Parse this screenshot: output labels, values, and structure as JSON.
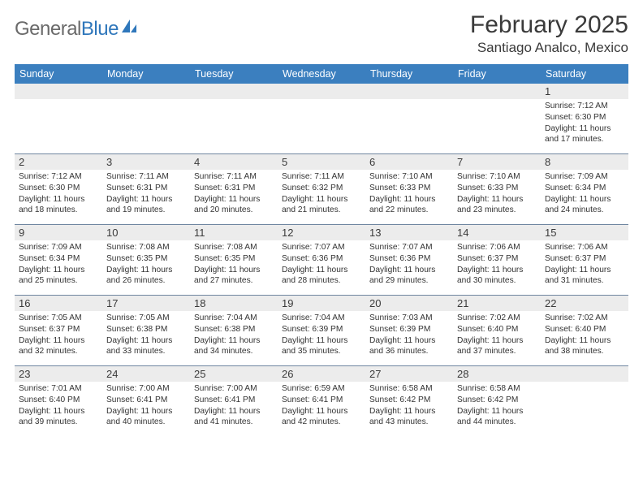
{
  "logo": {
    "text_gray": "General",
    "text_blue": "Blue"
  },
  "title": "February 2025",
  "location": "Santiago Analco, Mexico",
  "colors": {
    "header_bg": "#3b7fbf",
    "header_fg": "#ffffff",
    "gray_bg": "#ececec",
    "rule": "#6f86a0",
    "text": "#333333"
  },
  "daysOfWeek": [
    "Sunday",
    "Monday",
    "Tuesday",
    "Wednesday",
    "Thursday",
    "Friday",
    "Saturday"
  ],
  "grid": [
    [
      null,
      null,
      null,
      null,
      null,
      null,
      {
        "n": "1",
        "sr": "7:12 AM",
        "ss": "6:30 PM",
        "dl": "11 hours and 17 minutes."
      }
    ],
    [
      {
        "n": "2",
        "sr": "7:12 AM",
        "ss": "6:30 PM",
        "dl": "11 hours and 18 minutes."
      },
      {
        "n": "3",
        "sr": "7:11 AM",
        "ss": "6:31 PM",
        "dl": "11 hours and 19 minutes."
      },
      {
        "n": "4",
        "sr": "7:11 AM",
        "ss": "6:31 PM",
        "dl": "11 hours and 20 minutes."
      },
      {
        "n": "5",
        "sr": "7:11 AM",
        "ss": "6:32 PM",
        "dl": "11 hours and 21 minutes."
      },
      {
        "n": "6",
        "sr": "7:10 AM",
        "ss": "6:33 PM",
        "dl": "11 hours and 22 minutes."
      },
      {
        "n": "7",
        "sr": "7:10 AM",
        "ss": "6:33 PM",
        "dl": "11 hours and 23 minutes."
      },
      {
        "n": "8",
        "sr": "7:09 AM",
        "ss": "6:34 PM",
        "dl": "11 hours and 24 minutes."
      }
    ],
    [
      {
        "n": "9",
        "sr": "7:09 AM",
        "ss": "6:34 PM",
        "dl": "11 hours and 25 minutes."
      },
      {
        "n": "10",
        "sr": "7:08 AM",
        "ss": "6:35 PM",
        "dl": "11 hours and 26 minutes."
      },
      {
        "n": "11",
        "sr": "7:08 AM",
        "ss": "6:35 PM",
        "dl": "11 hours and 27 minutes."
      },
      {
        "n": "12",
        "sr": "7:07 AM",
        "ss": "6:36 PM",
        "dl": "11 hours and 28 minutes."
      },
      {
        "n": "13",
        "sr": "7:07 AM",
        "ss": "6:36 PM",
        "dl": "11 hours and 29 minutes."
      },
      {
        "n": "14",
        "sr": "7:06 AM",
        "ss": "6:37 PM",
        "dl": "11 hours and 30 minutes."
      },
      {
        "n": "15",
        "sr": "7:06 AM",
        "ss": "6:37 PM",
        "dl": "11 hours and 31 minutes."
      }
    ],
    [
      {
        "n": "16",
        "sr": "7:05 AM",
        "ss": "6:37 PM",
        "dl": "11 hours and 32 minutes."
      },
      {
        "n": "17",
        "sr": "7:05 AM",
        "ss": "6:38 PM",
        "dl": "11 hours and 33 minutes."
      },
      {
        "n": "18",
        "sr": "7:04 AM",
        "ss": "6:38 PM",
        "dl": "11 hours and 34 minutes."
      },
      {
        "n": "19",
        "sr": "7:04 AM",
        "ss": "6:39 PM",
        "dl": "11 hours and 35 minutes."
      },
      {
        "n": "20",
        "sr": "7:03 AM",
        "ss": "6:39 PM",
        "dl": "11 hours and 36 minutes."
      },
      {
        "n": "21",
        "sr": "7:02 AM",
        "ss": "6:40 PM",
        "dl": "11 hours and 37 minutes."
      },
      {
        "n": "22",
        "sr": "7:02 AM",
        "ss": "6:40 PM",
        "dl": "11 hours and 38 minutes."
      }
    ],
    [
      {
        "n": "23",
        "sr": "7:01 AM",
        "ss": "6:40 PM",
        "dl": "11 hours and 39 minutes."
      },
      {
        "n": "24",
        "sr": "7:00 AM",
        "ss": "6:41 PM",
        "dl": "11 hours and 40 minutes."
      },
      {
        "n": "25",
        "sr": "7:00 AM",
        "ss": "6:41 PM",
        "dl": "11 hours and 41 minutes."
      },
      {
        "n": "26",
        "sr": "6:59 AM",
        "ss": "6:41 PM",
        "dl": "11 hours and 42 minutes."
      },
      {
        "n": "27",
        "sr": "6:58 AM",
        "ss": "6:42 PM",
        "dl": "11 hours and 43 minutes."
      },
      {
        "n": "28",
        "sr": "6:58 AM",
        "ss": "6:42 PM",
        "dl": "11 hours and 44 minutes."
      },
      null
    ]
  ],
  "labels": {
    "sunrise": "Sunrise:",
    "sunset": "Sunset:",
    "daylight": "Daylight:"
  }
}
